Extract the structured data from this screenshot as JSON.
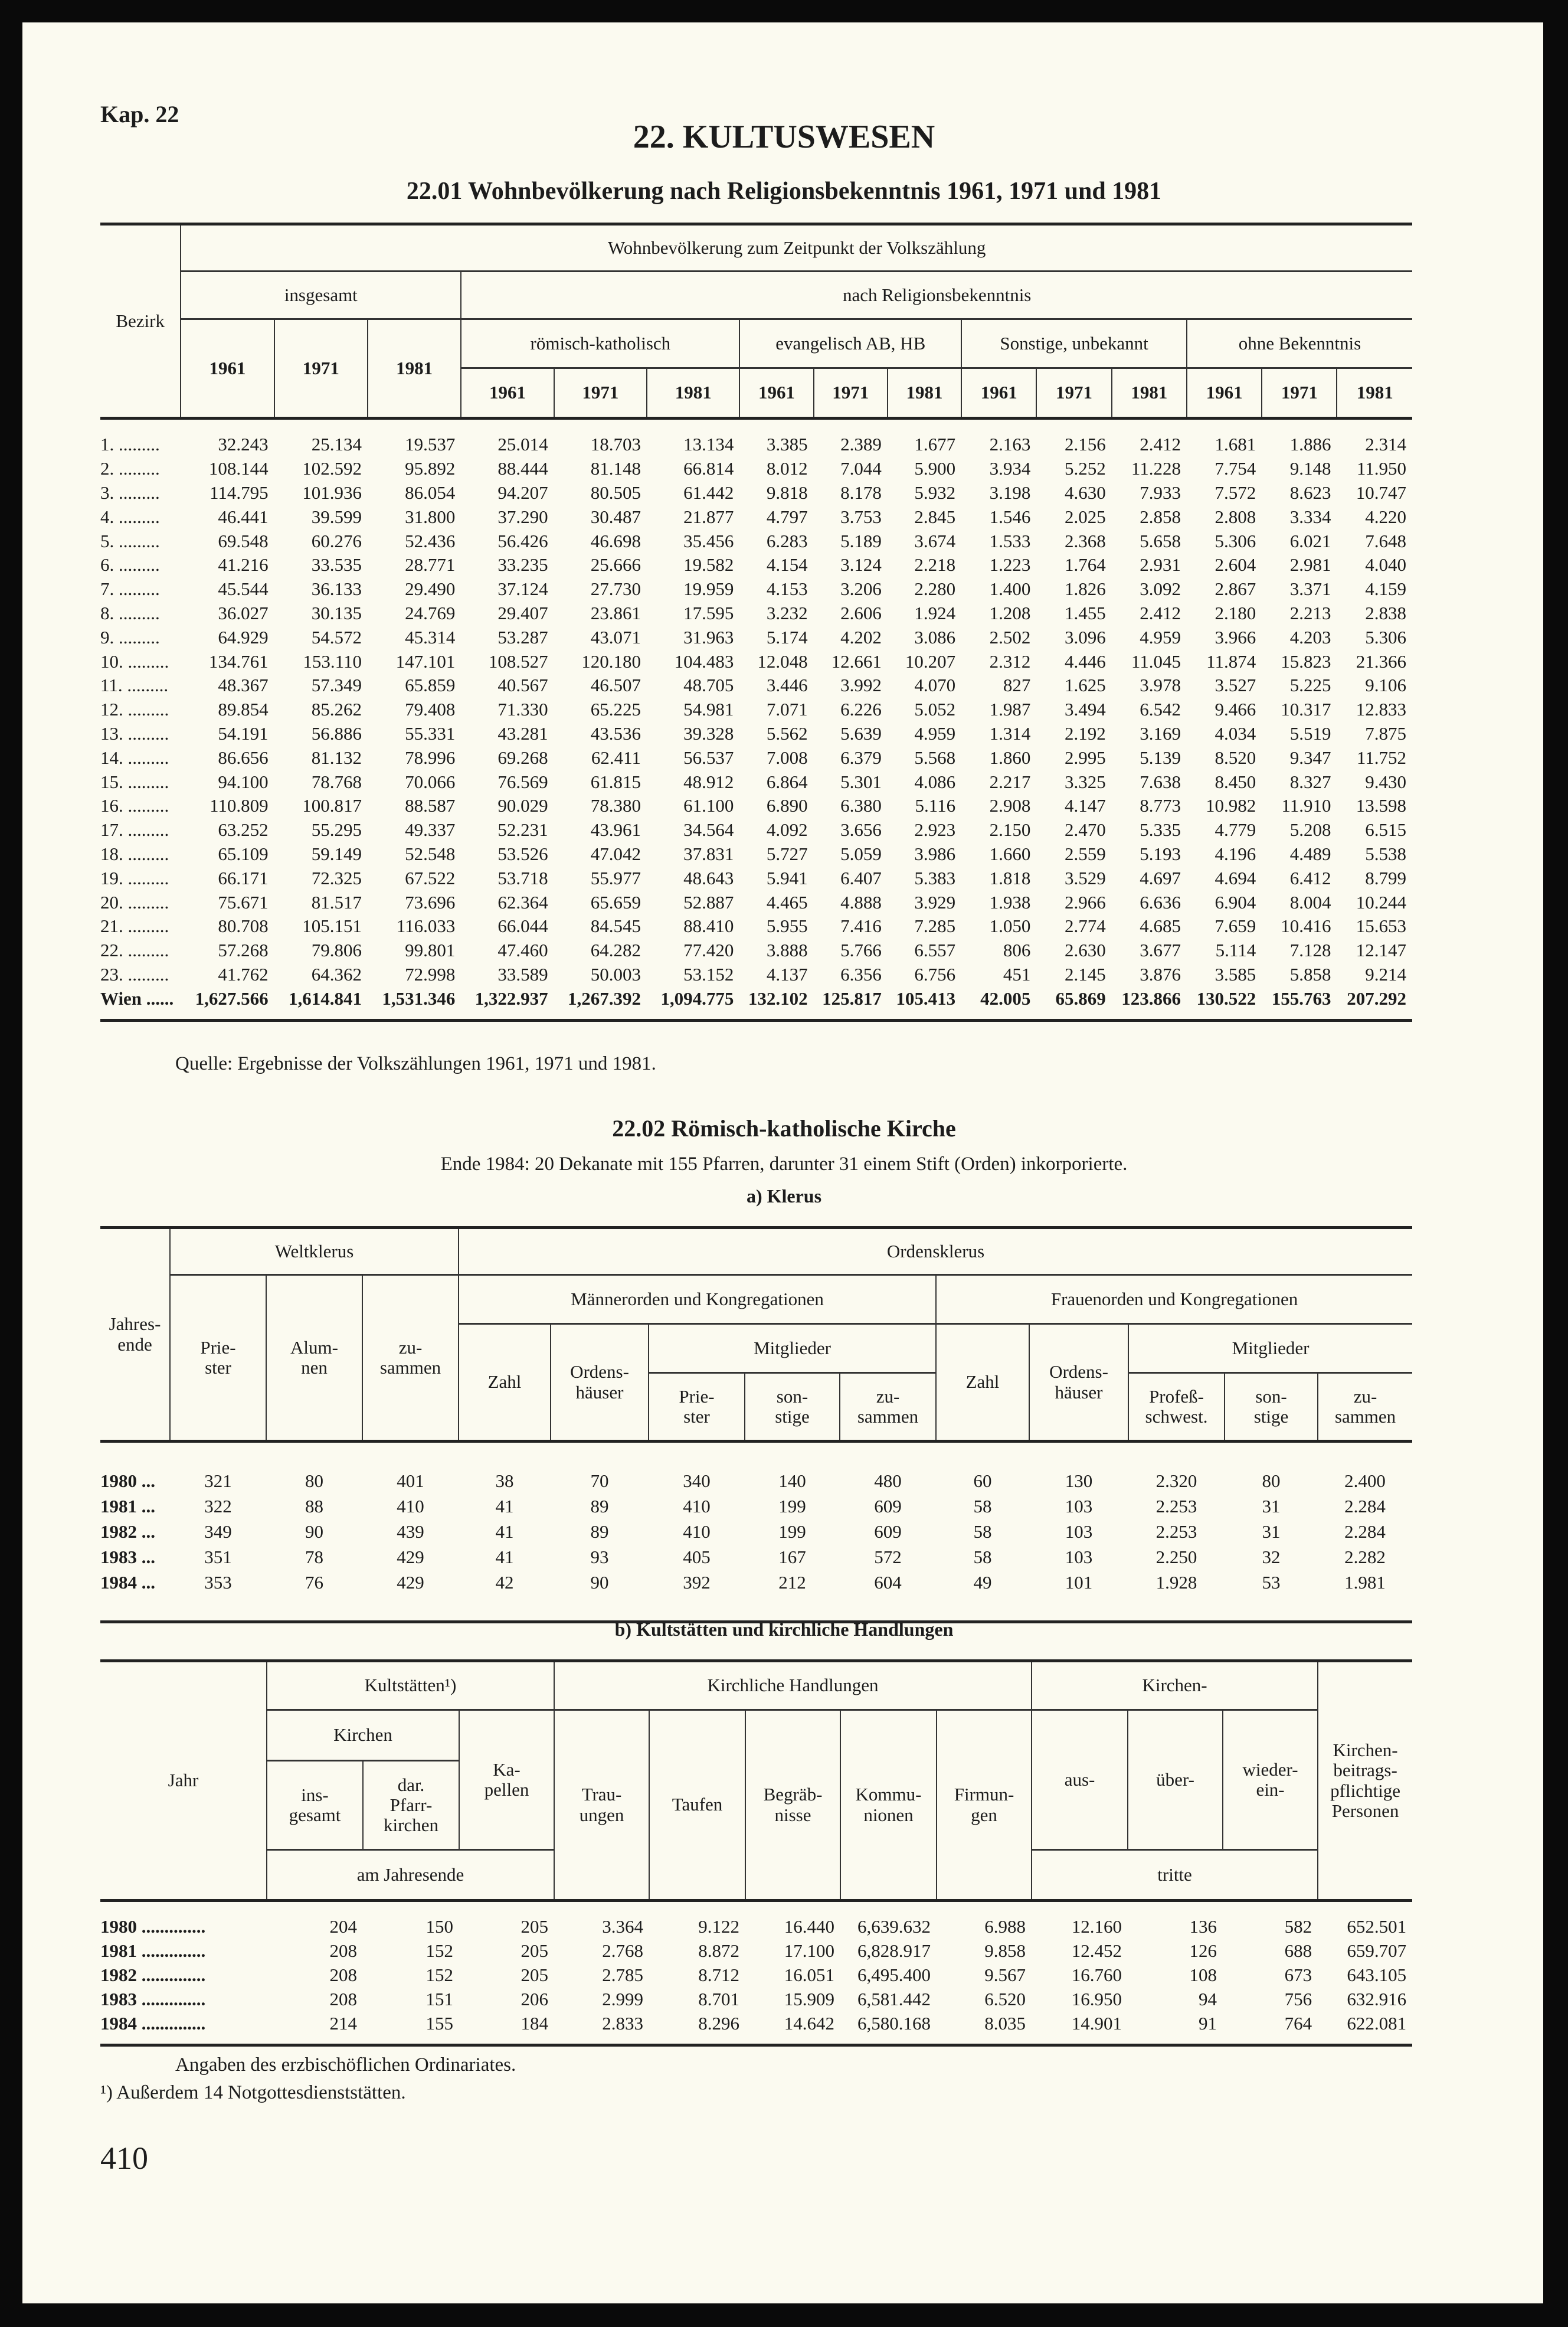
{
  "chapter": "Kap. 22",
  "heading": "22. KULTUSWESEN",
  "t1": {
    "title": "22.01 Wohnbevölkerung nach Religionsbekenntnis 1961, 1971 und 1981",
    "h_bezirk": "Bezirk",
    "h_top": "Wohnbevölkerung zum Zeitpunkt der Volkszählung",
    "h_insgesamt": "insgesamt",
    "h_nach": "nach Religionsbekenntnis",
    "h_groups": [
      "römisch-katholisch",
      "evangelisch AB, HB",
      "Sonstige, unbekannt",
      "ohne Bekenntnis"
    ],
    "years": [
      "1961",
      "1971",
      "1981"
    ],
    "rows": [
      [
        "1. .........",
        "32.243",
        "25.134",
        "19.537",
        "25.014",
        "18.703",
        "13.134",
        "3.385",
        "2.389",
        "1.677",
        "2.163",
        "2.156",
        "2.412",
        "1.681",
        "1.886",
        "2.314"
      ],
      [
        "2. .........",
        "108.144",
        "102.592",
        "95.892",
        "88.444",
        "81.148",
        "66.814",
        "8.012",
        "7.044",
        "5.900",
        "3.934",
        "5.252",
        "11.228",
        "7.754",
        "9.148",
        "11.950"
      ],
      [
        "3. .........",
        "114.795",
        "101.936",
        "86.054",
        "94.207",
        "80.505",
        "61.442",
        "9.818",
        "8.178",
        "5.932",
        "3.198",
        "4.630",
        "7.933",
        "7.572",
        "8.623",
        "10.747"
      ],
      [
        "4. .........",
        "46.441",
        "39.599",
        "31.800",
        "37.290",
        "30.487",
        "21.877",
        "4.797",
        "3.753",
        "2.845",
        "1.546",
        "2.025",
        "2.858",
        "2.808",
        "3.334",
        "4.220"
      ],
      [
        "5. .........",
        "69.548",
        "60.276",
        "52.436",
        "56.426",
        "46.698",
        "35.456",
        "6.283",
        "5.189",
        "3.674",
        "1.533",
        "2.368",
        "5.658",
        "5.306",
        "6.021",
        "7.648"
      ],
      [
        "6. .........",
        "41.216",
        "33.535",
        "28.771",
        "33.235",
        "25.666",
        "19.582",
        "4.154",
        "3.124",
        "2.218",
        "1.223",
        "1.764",
        "2.931",
        "2.604",
        "2.981",
        "4.040"
      ],
      [
        "7. .........",
        "45.544",
        "36.133",
        "29.490",
        "37.124",
        "27.730",
        "19.959",
        "4.153",
        "3.206",
        "2.280",
        "1.400",
        "1.826",
        "3.092",
        "2.867",
        "3.371",
        "4.159"
      ],
      [
        "8. .........",
        "36.027",
        "30.135",
        "24.769",
        "29.407",
        "23.861",
        "17.595",
        "3.232",
        "2.606",
        "1.924",
        "1.208",
        "1.455",
        "2.412",
        "2.180",
        "2.213",
        "2.838"
      ],
      [
        "9. .........",
        "64.929",
        "54.572",
        "45.314",
        "53.287",
        "43.071",
        "31.963",
        "5.174",
        "4.202",
        "3.086",
        "2.502",
        "3.096",
        "4.959",
        "3.966",
        "4.203",
        "5.306"
      ],
      [
        "10. .........",
        "134.761",
        "153.110",
        "147.101",
        "108.527",
        "120.180",
        "104.483",
        "12.048",
        "12.661",
        "10.207",
        "2.312",
        "4.446",
        "11.045",
        "11.874",
        "15.823",
        "21.366"
      ],
      [
        "11. .........",
        "48.367",
        "57.349",
        "65.859",
        "40.567",
        "46.507",
        "48.705",
        "3.446",
        "3.992",
        "4.070",
        "827",
        "1.625",
        "3.978",
        "3.527",
        "5.225",
        "9.106"
      ],
      [
        "12. .........",
        "89.854",
        "85.262",
        "79.408",
        "71.330",
        "65.225",
        "54.981",
        "7.071",
        "6.226",
        "5.052",
        "1.987",
        "3.494",
        "6.542",
        "9.466",
        "10.317",
        "12.833"
      ],
      [
        "13. .........",
        "54.191",
        "56.886",
        "55.331",
        "43.281",
        "43.536",
        "39.328",
        "5.562",
        "5.639",
        "4.959",
        "1.314",
        "2.192",
        "3.169",
        "4.034",
        "5.519",
        "7.875"
      ],
      [
        "14. .........",
        "86.656",
        "81.132",
        "78.996",
        "69.268",
        "62.411",
        "56.537",
        "7.008",
        "6.379",
        "5.568",
        "1.860",
        "2.995",
        "5.139",
        "8.520",
        "9.347",
        "11.752"
      ],
      [
        "15. .........",
        "94.100",
        "78.768",
        "70.066",
        "76.569",
        "61.815",
        "48.912",
        "6.864",
        "5.301",
        "4.086",
        "2.217",
        "3.325",
        "7.638",
        "8.450",
        "8.327",
        "9.430"
      ],
      [
        "16. .........",
        "110.809",
        "100.817",
        "88.587",
        "90.029",
        "78.380",
        "61.100",
        "6.890",
        "6.380",
        "5.116",
        "2.908",
        "4.147",
        "8.773",
        "10.982",
        "11.910",
        "13.598"
      ],
      [
        "17. .........",
        "63.252",
        "55.295",
        "49.337",
        "52.231",
        "43.961",
        "34.564",
        "4.092",
        "3.656",
        "2.923",
        "2.150",
        "2.470",
        "5.335",
        "4.779",
        "5.208",
        "6.515"
      ],
      [
        "18. .........",
        "65.109",
        "59.149",
        "52.548",
        "53.526",
        "47.042",
        "37.831",
        "5.727",
        "5.059",
        "3.986",
        "1.660",
        "2.559",
        "5.193",
        "4.196",
        "4.489",
        "5.538"
      ],
      [
        "19. .........",
        "66.171",
        "72.325",
        "67.522",
        "53.718",
        "55.977",
        "48.643",
        "5.941",
        "6.407",
        "5.383",
        "1.818",
        "3.529",
        "4.697",
        "4.694",
        "6.412",
        "8.799"
      ],
      [
        "20. .........",
        "75.671",
        "81.517",
        "73.696",
        "62.364",
        "65.659",
        "52.887",
        "4.465",
        "4.888",
        "3.929",
        "1.938",
        "2.966",
        "6.636",
        "6.904",
        "8.004",
        "10.244"
      ],
      [
        "21. .........",
        "80.708",
        "105.151",
        "116.033",
        "66.044",
        "84.545",
        "88.410",
        "5.955",
        "7.416",
        "7.285",
        "1.050",
        "2.774",
        "4.685",
        "7.659",
        "10.416",
        "15.653"
      ],
      [
        "22. .........",
        "57.268",
        "79.806",
        "99.801",
        "47.460",
        "64.282",
        "77.420",
        "3.888",
        "5.766",
        "6.557",
        "806",
        "2.630",
        "3.677",
        "5.114",
        "7.128",
        "12.147"
      ],
      [
        "23. .........",
        "41.762",
        "64.362",
        "72.998",
        "33.589",
        "50.003",
        "53.152",
        "4.137",
        "6.356",
        "6.756",
        "451",
        "2.145",
        "3.876",
        "3.585",
        "5.858",
        "9.214"
      ]
    ],
    "total": [
      "Wien ......",
      "1,627.566",
      "1,614.841",
      "1,531.346",
      "1,322.937",
      "1,267.392",
      "1,094.775",
      "132.102",
      "125.817",
      "105.413",
      "42.005",
      "65.869",
      "123.866",
      "130.522",
      "155.763",
      "207.292"
    ],
    "source": "Quelle: Ergebnisse der Volkszählungen 1961, 1971 und 1981."
  },
  "s2": {
    "title": "22.02 Römisch-katholische Kirche",
    "subtitle": "Ende 1984: 20 Dekanate mit 155 Pfarren, darunter 31 einem Stift (Orden) inkorporierte.",
    "a_title": "a) Klerus",
    "b_title": "b) Kultstätten und kirchliche Handlungen"
  },
  "ta": {
    "h_jahr": "Jahres-\nende",
    "h_welt": "Weltklerus",
    "h_orden": "Ordensklerus",
    "h_priester": "Prie-\nster",
    "h_alumnen": "Alum-\nnen",
    "h_zus": "zu-\nsammen",
    "h_maenner": "Männerorden und Kongregationen",
    "h_frauen": "Frauenorden und Kongregationen",
    "h_zahl": "Zahl",
    "h_haeuser": "Ordens-\nhäuser",
    "h_mitglieder": "Mitglieder",
    "h_sonstige": "son-\nstige",
    "h_profess": "Profeß-\nschwest.",
    "rows": [
      [
        "1980 ...",
        "321",
        "80",
        "401",
        "38",
        "70",
        "340",
        "140",
        "480",
        "60",
        "130",
        "2.320",
        "80",
        "2.400"
      ],
      [
        "1981 ...",
        "322",
        "88",
        "410",
        "41",
        "89",
        "410",
        "199",
        "609",
        "58",
        "103",
        "2.253",
        "31",
        "2.284"
      ],
      [
        "1982 ...",
        "349",
        "90",
        "439",
        "41",
        "89",
        "410",
        "199",
        "609",
        "58",
        "103",
        "2.253",
        "31",
        "2.284"
      ],
      [
        "1983 ...",
        "351",
        "78",
        "429",
        "41",
        "93",
        "405",
        "167",
        "572",
        "58",
        "103",
        "2.250",
        "32",
        "2.282"
      ],
      [
        "1984 ...",
        "353",
        "76",
        "429",
        "42",
        "90",
        "392",
        "212",
        "604",
        "49",
        "101",
        "1.928",
        "53",
        "1.981"
      ]
    ]
  },
  "tb": {
    "h_jahr": "Jahr",
    "h_kult": "Kultstätten¹)",
    "h_handlungen": "Kirchliche Handlungen",
    "h_kirchen_austr": "Kirchen-",
    "h_beitrag": "Kirchen-\nbeitrags-\npflichtige\nPersonen",
    "h_kirchen": "Kirchen",
    "h_kapellen": "Ka-\npellen",
    "h_ins": "ins-\ngesamt",
    "h_pfarr": "dar.\nPfarr-\nkirchen",
    "h_trau": "Trau-\nungen",
    "h_taufen": "Taufen",
    "h_begraeb": "Begräb-\nnisse",
    "h_kommu": "Kommu-\nnionen",
    "h_firm": "Firmun-\ngen",
    "h_aus": "aus-",
    "h_ueber": "über-",
    "h_wieder": "wieder-\nein-",
    "h_jahresende": "am Jahresende",
    "h_tritte": "tritte",
    "rows": [
      [
        "1980 ..............",
        "204",
        "150",
        "205",
        "3.364",
        "9.122",
        "16.440",
        "6,639.632",
        "6.988",
        "12.160",
        "136",
        "582",
        "652.501"
      ],
      [
        "1981 ..............",
        "208",
        "152",
        "205",
        "2.768",
        "8.872",
        "17.100",
        "6,828.917",
        "9.858",
        "12.452",
        "126",
        "688",
        "659.707"
      ],
      [
        "1982 ..............",
        "208",
        "152",
        "205",
        "2.785",
        "8.712",
        "16.051",
        "6,495.400",
        "9.567",
        "16.760",
        "108",
        "673",
        "643.105"
      ],
      [
        "1983 ..............",
        "208",
        "151",
        "206",
        "2.999",
        "8.701",
        "15.909",
        "6,581.442",
        "6.520",
        "16.950",
        "94",
        "756",
        "632.916"
      ],
      [
        "1984 ..............",
        "214",
        "155",
        "184",
        "2.833",
        "8.296",
        "14.642",
        "6,580.168",
        "8.035",
        "14.901",
        "91",
        "764",
        "622.081"
      ]
    ],
    "note": "Angaben des erzbischöflichen Ordinariates.",
    "footnote": "¹) Außerdem 14 Notgottesdienststätten."
  },
  "page_number": "410"
}
